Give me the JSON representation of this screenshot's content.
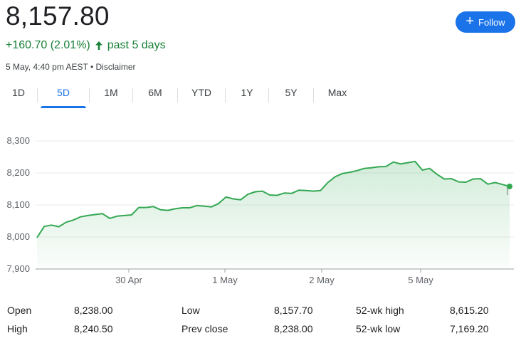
{
  "price": "8,157.80",
  "change": {
    "text": "+160.70 (2.01%)",
    "direction": "up",
    "period": "past 5 days",
    "color": "#188038"
  },
  "meta": {
    "timestamp": "5 May, 4:40 pm AEST",
    "separator": "•",
    "disclaimer": "Disclaimer"
  },
  "follow_button": {
    "label": "Follow",
    "icon": "plus-icon",
    "color": "#1a73e8"
  },
  "tabs": [
    {
      "label": "1D",
      "active": false
    },
    {
      "label": "5D",
      "active": true
    },
    {
      "label": "1M",
      "active": false
    },
    {
      "label": "6M",
      "active": false
    },
    {
      "label": "YTD",
      "active": false
    },
    {
      "label": "1Y",
      "active": false
    },
    {
      "label": "5Y",
      "active": false
    },
    {
      "label": "Max",
      "active": false
    }
  ],
  "chart_data": {
    "type": "area",
    "ylim": [
      7900,
      8300
    ],
    "y_ticks": [
      "8,300",
      "8,200",
      "8,100",
      "8,000",
      "7,900"
    ],
    "x_ticks": [
      "30 Apr",
      "1 May",
      "2 May",
      "5 May"
    ],
    "line_color": "#34a853",
    "grid": true,
    "series": [
      {
        "values": [
          7998,
          8033,
          8037,
          8032,
          8046,
          8053,
          8063,
          8067,
          8070,
          8073,
          8058,
          8065,
          8067,
          8069,
          8092,
          8092,
          8095,
          8085,
          8083,
          8088,
          8091,
          8091,
          8098,
          8096,
          8094,
          8105,
          8125,
          8119,
          8116,
          8133,
          8141,
          8143,
          8131,
          8130,
          8137,
          8136,
          8146,
          8145,
          8143,
          8145,
          8170,
          8188,
          8198,
          8202,
          8207,
          8214,
          8216,
          8219,
          8220,
          8234,
          8228,
          8232,
          8236,
          8209,
          8214,
          8196,
          8181,
          8182,
          8172,
          8171,
          8181,
          8182,
          8165,
          8170,
          8164,
          8157.8
        ]
      }
    ]
  },
  "stats": [
    {
      "label": "Open",
      "value": "8,238.00"
    },
    {
      "label": "High",
      "value": "8,240.50"
    },
    {
      "label": "Low",
      "value": "8,157.70"
    },
    {
      "label": "Prev close",
      "value": "8,238.00"
    },
    {
      "label": "52-wk high",
      "value": "8,615.20"
    },
    {
      "label": "52-wk low",
      "value": "7,169.20"
    }
  ]
}
